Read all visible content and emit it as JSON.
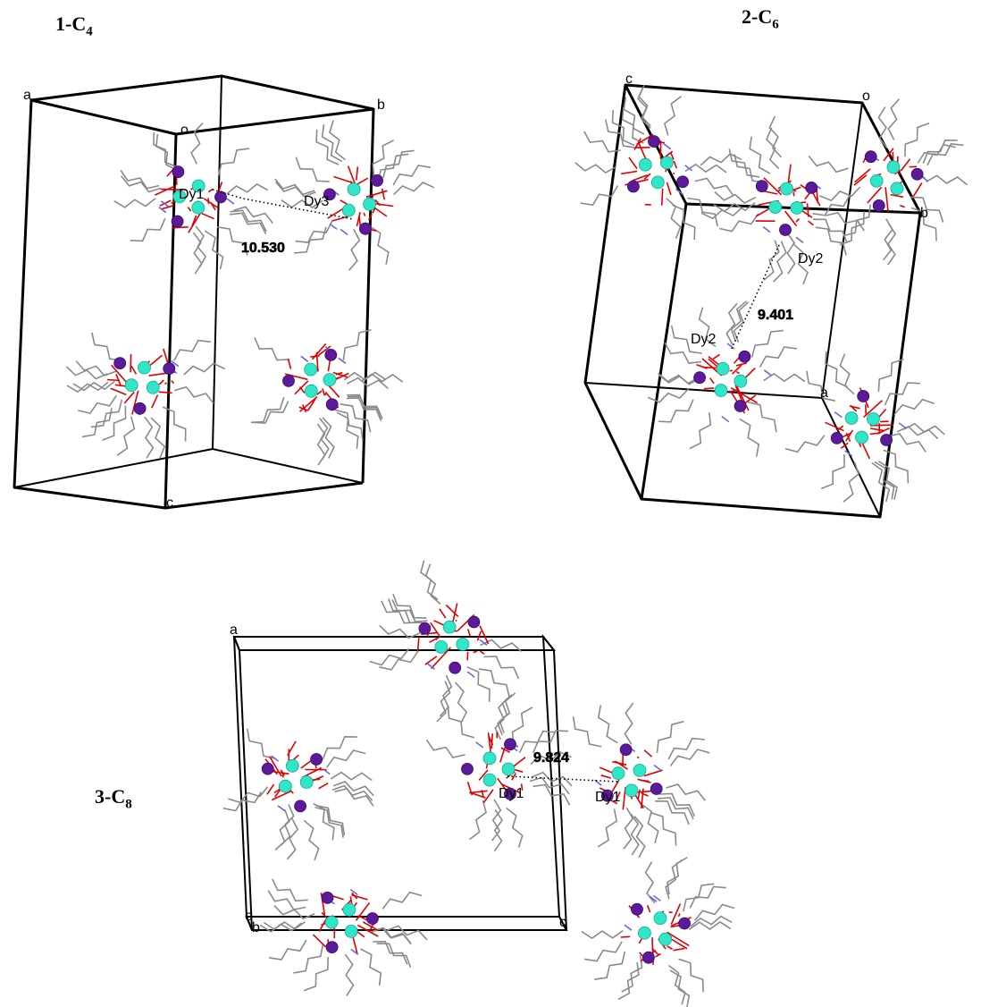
{
  "colors": {
    "dy_atom": "#2fe6c8",
    "mn_atom": "#5a1a9a",
    "oxygen_bond": "#e00000",
    "carbon_bond": "#8a8a8a",
    "nitrogen_bond": "#6a6ad8",
    "cell": "#000000"
  },
  "panels": [
    {
      "title_main": "1-C",
      "title_sub": "4",
      "axes": {
        "a": "a",
        "b": "b",
        "c": "c",
        "o": "o"
      },
      "atoms": {
        "first": "Dy1",
        "second": "Dy3"
      },
      "distance": "10.530"
    },
    {
      "title_main": "2-C",
      "title_sub": "6",
      "axes": {
        "a": "a",
        "b": "b",
        "c": "c",
        "o": "o"
      },
      "atoms": {
        "first": "Dy2",
        "second": "Dy2"
      },
      "distance": "9.401"
    },
    {
      "title_main": "3-C",
      "title_sub": "8",
      "axes": {
        "a": "a",
        "b": "b",
        "c": "c",
        "o": "o"
      },
      "atoms": {
        "first": "Dy1",
        "second": "Dy1"
      },
      "distance": "9.824"
    }
  ]
}
